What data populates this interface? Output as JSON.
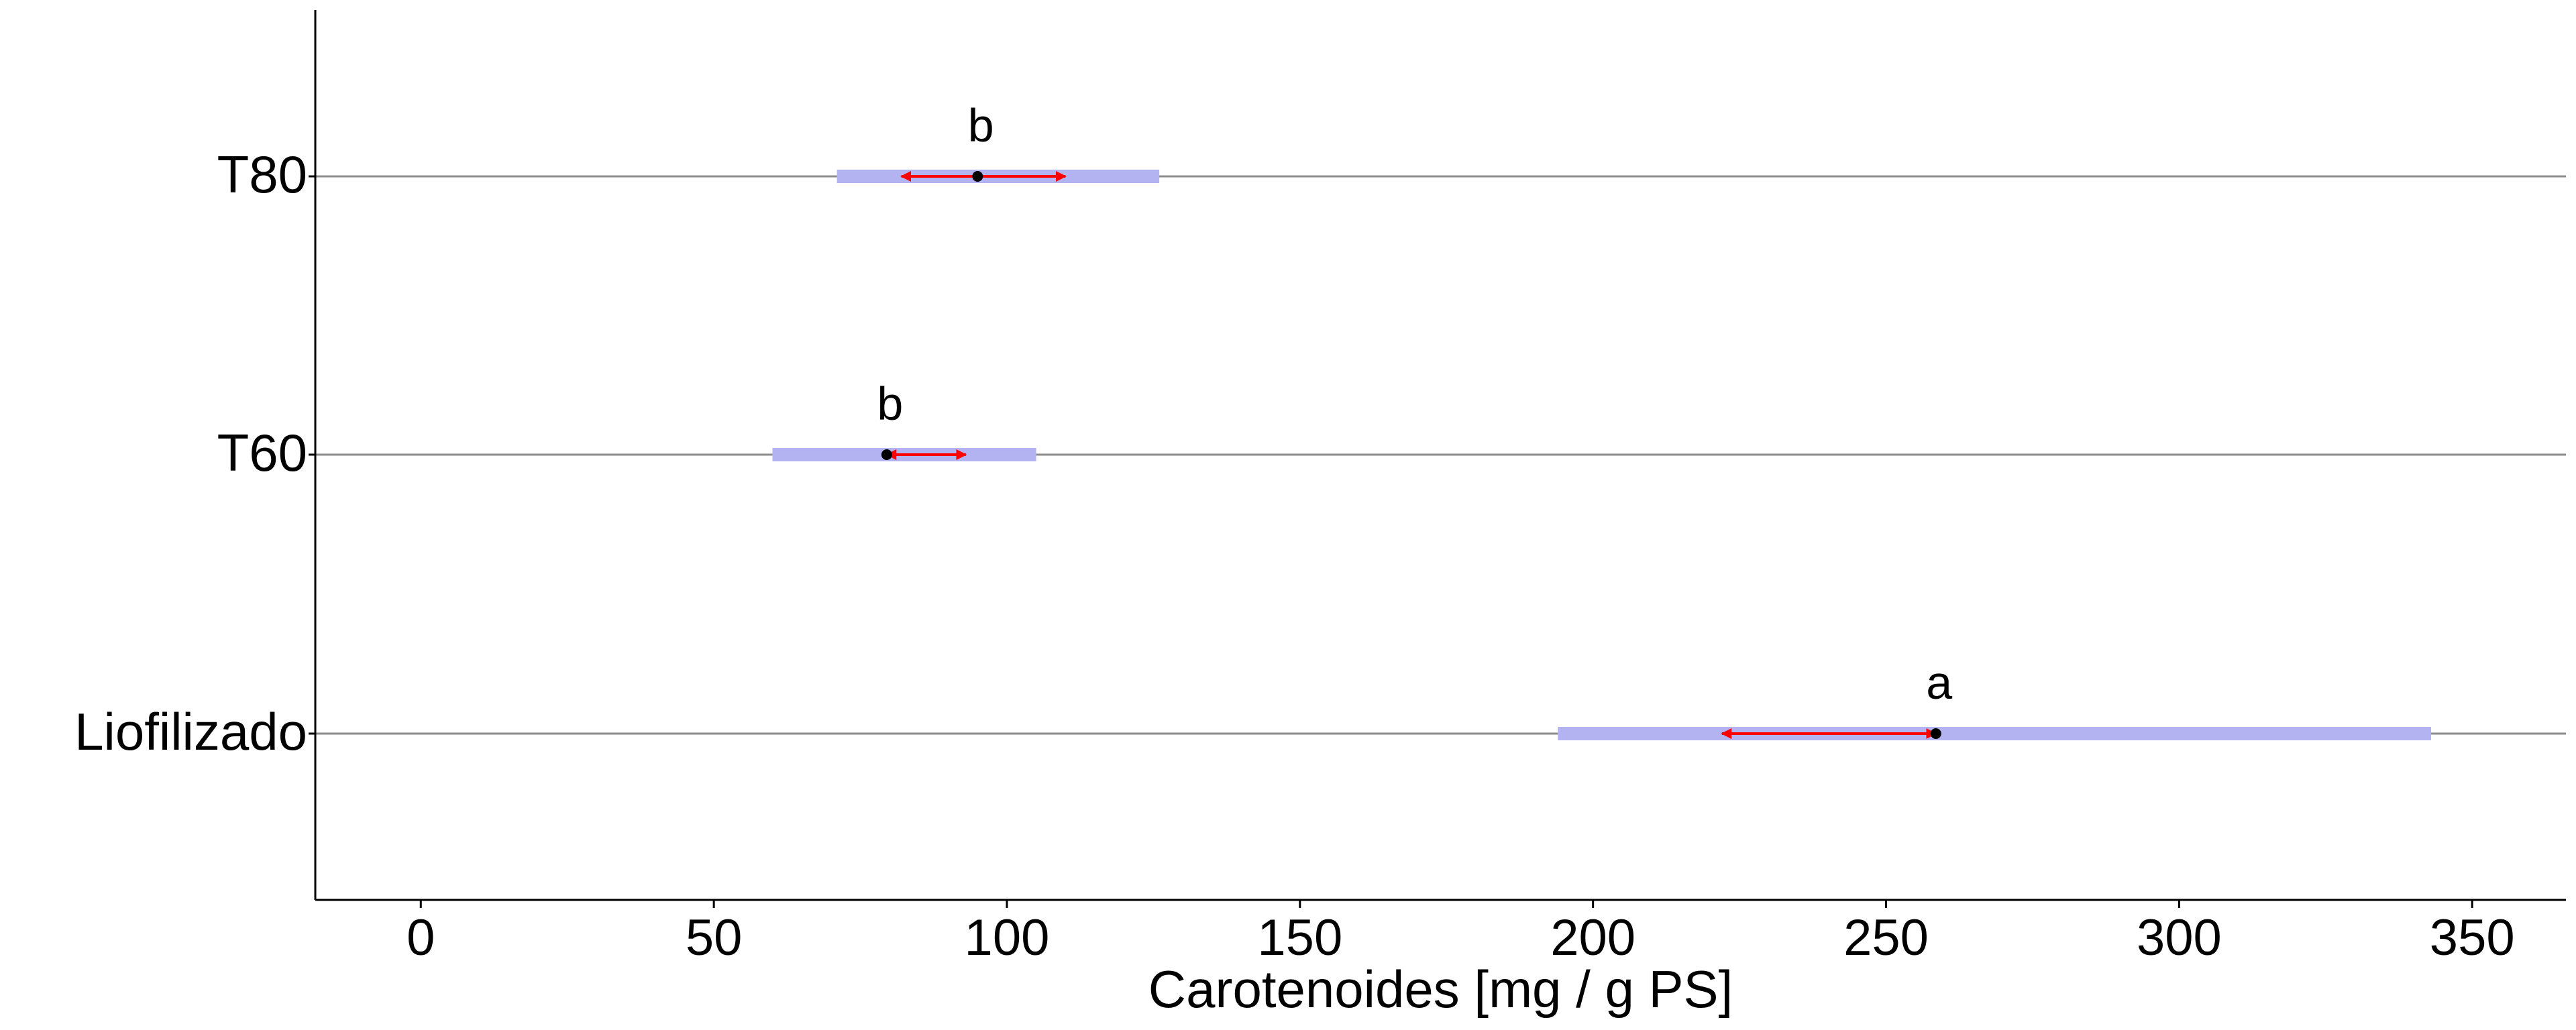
{
  "chart_data": {
    "type": "interval",
    "xlabel": "Carotenoides [mg / g PS]",
    "ylabel": "",
    "xlim": [
      -18,
      366
    ],
    "xticks": [
      0,
      50,
      100,
      150,
      200,
      250,
      300,
      350
    ],
    "xtick_labels": [
      "0",
      "50",
      "100",
      "150",
      "200",
      "250",
      "300",
      "350"
    ],
    "categories": [
      "T80",
      "T60",
      "Liofilizado"
    ],
    "intervals": [
      {
        "category": "T80",
        "mean": 95,
        "ci_low": 71,
        "ci_high": 126,
        "arrow_low": 82,
        "arrow_high": 110,
        "letter": "b"
      },
      {
        "category": "T60",
        "mean": 79.5,
        "ci_low": 60,
        "ci_high": 105,
        "arrow_low": 79.5,
        "arrow_high": 93,
        "letter": "b"
      },
      {
        "category": "Liofilizado",
        "mean": 258.5,
        "ci_low": 194,
        "ci_high": 343,
        "arrow_low": 222,
        "arrow_high": 258.5,
        "letter": "a"
      }
    ],
    "grid": false,
    "legend": "none",
    "colors": {
      "ci_bar": "#b3b3f2",
      "arrow": "#ff0000",
      "mean_point": "#000000",
      "reference_line": "#8c8c8c",
      "axis": "#000000"
    }
  }
}
